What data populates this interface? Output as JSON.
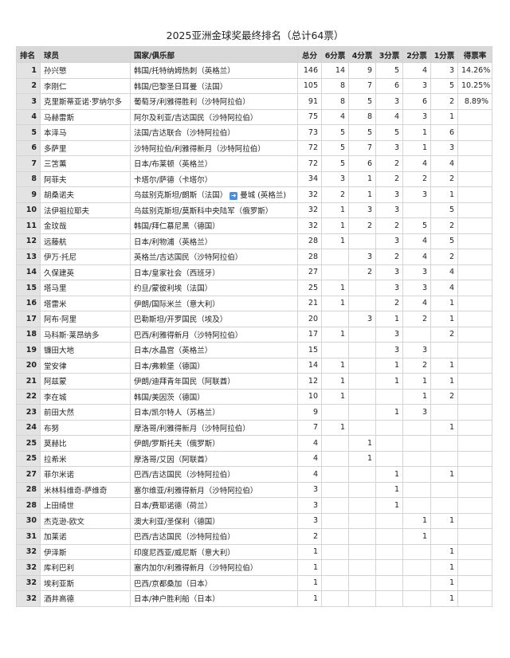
{
  "title": "2025亚洲金球奖最终排名（总计64票）",
  "columns": [
    "排名",
    "球员",
    "国家/俱乐部",
    "总分",
    "6分票",
    "4分票",
    "3分票",
    "2分票",
    "1分票",
    "得票率"
  ],
  "transfer_icon": "arrow-right-icon",
  "accent_icon_color": "#4a8fd9",
  "rows": [
    {
      "rank": "1",
      "player": "孙兴慜",
      "club": "韩国/托特纳姆热刺（英格兰）",
      "total": "146",
      "v6": "14",
      "v4": "9",
      "v3": "5",
      "v2": "4",
      "v1": "3",
      "rate": "14.26%"
    },
    {
      "rank": "2",
      "player": "李刚仁",
      "club": "韩国/巴黎圣日耳曼（法国）",
      "total": "105",
      "v6": "8",
      "v4": "7",
      "v3": "6",
      "v2": "3",
      "v1": "5",
      "rate": "10.25%"
    },
    {
      "rank": "3",
      "player": "克里斯蒂亚诺·罗纳尔多",
      "club": "葡萄牙/利雅得胜利（沙特阿拉伯）",
      "total": "91",
      "v6": "8",
      "v4": "5",
      "v3": "3",
      "v2": "6",
      "v1": "2",
      "rate": "8.89%"
    },
    {
      "rank": "4",
      "player": "马赫雷斯",
      "club": "阿尔及利亚/吉达国民（沙特阿拉伯）",
      "total": "75",
      "v6": "4",
      "v4": "8",
      "v3": "4",
      "v2": "3",
      "v1": "1",
      "rate": ""
    },
    {
      "rank": "5",
      "player": "本泽马",
      "club": "法国/吉达联合（沙特阿拉伯）",
      "total": "73",
      "v6": "5",
      "v4": "5",
      "v3": "5",
      "v2": "1",
      "v1": "6",
      "rate": ""
    },
    {
      "rank": "6",
      "player": "多萨里",
      "club": "沙特阿拉伯/利雅得新月（沙特阿拉伯）",
      "total": "72",
      "v6": "5",
      "v4": "7",
      "v3": "3",
      "v2": "1",
      "v1": "3",
      "rate": ""
    },
    {
      "rank": "7",
      "player": "三笘薰",
      "club": "日本/布莱顿（英格兰）",
      "total": "72",
      "v6": "5",
      "v4": "6",
      "v3": "2",
      "v2": "4",
      "v1": "4",
      "rate": ""
    },
    {
      "rank": "8",
      "player": "阿菲夫",
      "club": "卡塔尔/萨德（卡塔尔）",
      "total": "34",
      "v6": "3",
      "v4": "1",
      "v3": "2",
      "v2": "2",
      "v1": "2",
      "rate": ""
    },
    {
      "rank": "9",
      "player": "胡桑诺夫",
      "club": "乌兹别克斯坦/朗斯（法国）",
      "club_after": "曼城 (英格兰)",
      "total": "32",
      "v6": "2",
      "v4": "1",
      "v3": "3",
      "v2": "3",
      "v1": "1",
      "rate": ""
    },
    {
      "rank": "10",
      "player": "法伊祖拉耶夫",
      "club": "乌兹别克斯坦/莫斯科中央陆军（俄罗斯）",
      "total": "32",
      "v6": "1",
      "v4": "3",
      "v3": "3",
      "v2": "",
      "v1": "5",
      "rate": ""
    },
    {
      "rank": "11",
      "player": "金玟哉",
      "club": "韩国/拜仁慕尼黑（德国）",
      "total": "32",
      "v6": "1",
      "v4": "2",
      "v3": "2",
      "v2": "5",
      "v1": "2",
      "rate": ""
    },
    {
      "rank": "12",
      "player": "远藤航",
      "club": "日本/利物浦（英格兰）",
      "total": "28",
      "v6": "1",
      "v4": "",
      "v3": "3",
      "v2": "4",
      "v1": "5",
      "rate": ""
    },
    {
      "rank": "13",
      "player": "伊万·托尼",
      "club": "英格兰/吉达国民（沙特阿拉伯）",
      "total": "28",
      "v6": "",
      "v4": "3",
      "v3": "2",
      "v2": "4",
      "v1": "2",
      "rate": ""
    },
    {
      "rank": "14",
      "player": "久保建英",
      "club": "日本/皇家社会（西班牙）",
      "total": "27",
      "v6": "",
      "v4": "2",
      "v3": "3",
      "v2": "3",
      "v1": "4",
      "rate": ""
    },
    {
      "rank": "15",
      "player": "塔马里",
      "club": "约旦/蒙彼利埃（法国）",
      "total": "25",
      "v6": "1",
      "v4": "",
      "v3": "3",
      "v2": "3",
      "v1": "4",
      "rate": ""
    },
    {
      "rank": "16",
      "player": "塔雷米",
      "club": "伊朗/国际米兰（意大利）",
      "total": "21",
      "v6": "1",
      "v4": "",
      "v3": "2",
      "v2": "4",
      "v1": "1",
      "rate": ""
    },
    {
      "rank": "17",
      "player": "阿布·阿里",
      "club": "巴勒斯坦/开罗国民（埃及）",
      "total": "20",
      "v6": "",
      "v4": "3",
      "v3": "1",
      "v2": "2",
      "v1": "1",
      "rate": ""
    },
    {
      "rank": "18",
      "player": "马科斯·莱昂纳多",
      "club": "巴西/利雅得新月（沙特阿拉伯）",
      "total": "17",
      "v6": "1",
      "v4": "",
      "v3": "3",
      "v2": "",
      "v1": "2",
      "rate": ""
    },
    {
      "rank": "19",
      "player": "镰田大地",
      "club": "日本/水晶宫（英格兰）",
      "total": "15",
      "v6": "",
      "v4": "",
      "v3": "3",
      "v2": "3",
      "v1": "",
      "rate": ""
    },
    {
      "rank": "20",
      "player": "堂安律",
      "club": "日本/弗赖堡（德国）",
      "total": "14",
      "v6": "1",
      "v4": "",
      "v3": "1",
      "v2": "2",
      "v1": "1",
      "rate": ""
    },
    {
      "rank": "21",
      "player": "阿兹蒙",
      "club": "伊朗/迪拜青年国民（阿联酋）",
      "total": "12",
      "v6": "1",
      "v4": "",
      "v3": "1",
      "v2": "1",
      "v1": "1",
      "rate": ""
    },
    {
      "rank": "22",
      "player": "李在城",
      "club": "韩国/美因茨（德国）",
      "total": "10",
      "v6": "1",
      "v4": "",
      "v3": "",
      "v2": "1",
      "v1": "2",
      "rate": ""
    },
    {
      "rank": "23",
      "player": "前田大然",
      "club": "日本/凯尔特人（苏格兰）",
      "total": "9",
      "v6": "",
      "v4": "",
      "v3": "1",
      "v2": "3",
      "v1": "",
      "rate": ""
    },
    {
      "rank": "24",
      "player": "布努",
      "club": "摩洛哥/利雅得新月（沙特阿拉伯）",
      "total": "7",
      "v6": "1",
      "v4": "",
      "v3": "",
      "v2": "",
      "v1": "1",
      "rate": ""
    },
    {
      "rank": "25",
      "player": "莫赫比",
      "club": "伊朗/罗斯托夫（俄罗斯）",
      "total": "4",
      "v6": "",
      "v4": "1",
      "v3": "",
      "v2": "",
      "v1": "",
      "rate": ""
    },
    {
      "rank": "25",
      "player": "拉希米",
      "club": "摩洛哥/艾因（阿联酋）",
      "total": "4",
      "v6": "",
      "v4": "1",
      "v3": "",
      "v2": "",
      "v1": "",
      "rate": ""
    },
    {
      "rank": "27",
      "player": "菲尔米诺",
      "club": "巴西/吉达国民（沙特阿拉伯）",
      "total": "4",
      "v6": "",
      "v4": "",
      "v3": "1",
      "v2": "",
      "v1": "1",
      "rate": ""
    },
    {
      "rank": "28",
      "player": "米林科维奇-萨维奇",
      "club": "塞尔维亚/利雅得新月（沙特阿拉伯）",
      "total": "3",
      "v6": "",
      "v4": "",
      "v3": "1",
      "v2": "",
      "v1": "",
      "rate": ""
    },
    {
      "rank": "28",
      "player": "上田绮世",
      "club": "日本/费耶诺德（荷兰）",
      "total": "3",
      "v6": "",
      "v4": "",
      "v3": "1",
      "v2": "",
      "v1": "",
      "rate": ""
    },
    {
      "rank": "30",
      "player": "杰克逊-欧文",
      "club": "澳大利亚/圣保利（德国）",
      "total": "3",
      "v6": "",
      "v4": "",
      "v3": "",
      "v2": "1",
      "v1": "1",
      "rate": ""
    },
    {
      "rank": "31",
      "player": "加莱诺",
      "club": "巴西/吉达国民（沙特阿拉伯）",
      "total": "2",
      "v6": "",
      "v4": "",
      "v3": "",
      "v2": "1",
      "v1": "",
      "rate": ""
    },
    {
      "rank": "32",
      "player": "伊泽斯",
      "club": "印度尼西亚/威尼斯（意大利）",
      "total": "1",
      "v6": "",
      "v4": "",
      "v3": "",
      "v2": "",
      "v1": "1",
      "rate": ""
    },
    {
      "rank": "32",
      "player": "库利巴利",
      "club": "塞内加尔/利雅得新月（沙特阿拉伯）",
      "total": "1",
      "v6": "",
      "v4": "",
      "v3": "",
      "v2": "",
      "v1": "1",
      "rate": ""
    },
    {
      "rank": "32",
      "player": "埃利亚斯",
      "club": "巴西/京都桑加（日本）",
      "total": "1",
      "v6": "",
      "v4": "",
      "v3": "",
      "v2": "",
      "v1": "1",
      "rate": ""
    },
    {
      "rank": "32",
      "player": "酒井高德",
      "club": "日本/神户胜利船（日本）",
      "total": "1",
      "v6": "",
      "v4": "",
      "v3": "",
      "v2": "",
      "v1": "1",
      "rate": ""
    }
  ]
}
